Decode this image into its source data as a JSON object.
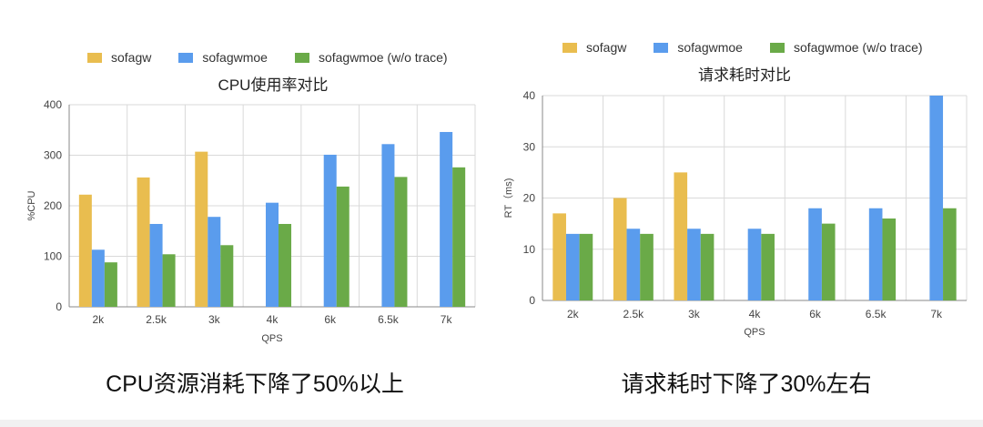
{
  "colors": {
    "sofagw": "#e9bd4f",
    "sofagwmoe": "#5a9ced",
    "sofagwmoe_notrace": "#6aaa48",
    "grid": "#d9d9d9",
    "axis": "#888888"
  },
  "legend": [
    "sofagw",
    "sofagwmoe",
    "sofagwmoe (w/o trace)"
  ],
  "captions": {
    "left": "CPU资源消耗下降了50%以上",
    "right": "请求耗时下降了30%左右"
  },
  "chart_data": [
    {
      "type": "bar",
      "title": "CPU使用率对比",
      "xlabel": "QPS",
      "ylabel": "%CPU",
      "ylim": [
        0,
        400
      ],
      "yticks": [
        0,
        100,
        200,
        300,
        400
      ],
      "categories": [
        "2k",
        "2.5k",
        "3k",
        "4k",
        "6k",
        "6.5k",
        "7k"
      ],
      "series": [
        {
          "name": "sofagw",
          "values": [
            222,
            256,
            307,
            null,
            null,
            null,
            null
          ]
        },
        {
          "name": "sofagwmoe",
          "values": [
            113,
            164,
            178,
            206,
            301,
            322,
            346
          ]
        },
        {
          "name": "sofagwmoe (w/o trace)",
          "values": [
            88,
            104,
            122,
            164,
            238,
            257,
            276
          ]
        }
      ],
      "legend_position": "top",
      "grid": true
    },
    {
      "type": "bar",
      "title": "请求耗时对比",
      "xlabel": "QPS",
      "ylabel": "RT（ms)",
      "ylim": [
        0,
        40
      ],
      "yticks": [
        0,
        10,
        20,
        30,
        40
      ],
      "categories": [
        "2k",
        "2.5k",
        "3k",
        "4k",
        "6k",
        "6.5k",
        "7k"
      ],
      "series": [
        {
          "name": "sofagw",
          "values": [
            17,
            20,
            25,
            null,
            null,
            null,
            null
          ]
        },
        {
          "name": "sofagwmoe",
          "values": [
            13,
            14,
            14,
            14,
            18,
            18,
            40
          ]
        },
        {
          "name": "sofagwmoe (w/o trace)",
          "values": [
            13,
            13,
            13,
            13,
            15,
            16,
            18
          ]
        }
      ],
      "legend_position": "top",
      "grid": true
    }
  ]
}
